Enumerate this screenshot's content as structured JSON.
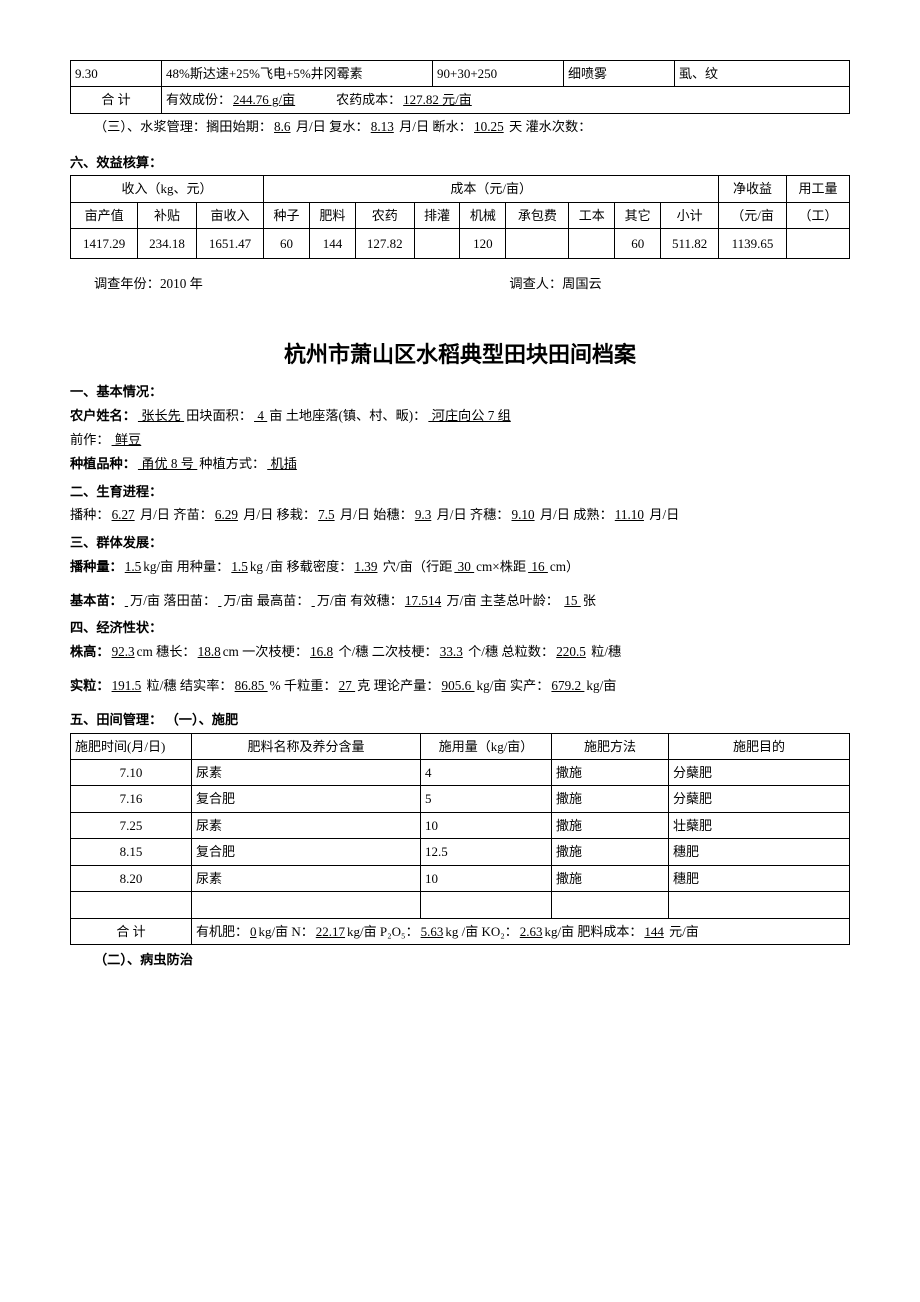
{
  "top_table1": {
    "row1": {
      "c1": "9.30",
      "c2": "48%斯达速+25%飞电+5%井冈霉素",
      "c3": "90+30+250",
      "c4": "细喷雾",
      "c5": "虱、纹"
    },
    "row2": {
      "c1": "合     计",
      "c2_pre": "有效成份：",
      "c2_u": "244.76 g/亩",
      "c3_pre": "农药成本：",
      "c3_u": "127.82 元/亩"
    }
  },
  "water": {
    "label": "（三）、水浆管理：搁田始期：",
    "v1": "8.6",
    "t1": " 月/日     复水：",
    "v2": "8.13",
    "t2": " 月/日     断水：",
    "v3": "10.25",
    "t3": " 天    灌水次数：",
    "v4": "          "
  },
  "section6": "六、效益核算：",
  "benefit_table": {
    "h_inc": "收入（kg、元）",
    "h_cost": "成本（元/亩）",
    "h_net": "净收益",
    "h_labor": "用工量",
    "c_inc1": "亩产值",
    "c_inc2": "补贴",
    "c_inc3": "亩收入",
    "c_c1": "种子",
    "c_c2": "肥料",
    "c_c3": "农药",
    "c_c4": "排灌",
    "c_c5": "机械",
    "c_c6": "承包费",
    "c_c7": "工本",
    "c_c8": "其它",
    "c_c9": "小计",
    "c_net": "（元/亩",
    "c_labor": "（工）",
    "r": {
      "muval": "1417.29",
      "sub": "234.18",
      "muinc": "1651.47",
      "seed": "60",
      "fert": "144",
      "pest": "127.82",
      "irr": "",
      "mach": "120",
      "rent": "",
      "wage": "",
      "other": "60",
      "subtotal": "511.82",
      "net": "1139.65",
      "labor": ""
    }
  },
  "footer": {
    "year_lbl": "调查年份：",
    "year": "2010 年",
    "person_lbl": "调查人：",
    "person": "周国云"
  },
  "main_title": "杭州市萧山区水稻典型田块田间档案",
  "s1": {
    "title": "一、基本情况：",
    "l1a": "农户姓名：",
    "v1": "   张长先   ",
    "l1b": "    田块面积：",
    "v2": "   4   ",
    "l1c": " 亩    土地座落(镇、村、畈)：",
    "v3": "   河庄向公 7 组   ",
    "l2a": "前作：",
    "v4": "  鲜豆  ",
    "l3a": "种植品种：",
    "v5": "  甬优 8 号  ",
    "l3b": "   种植方式：",
    "v6": "   机插    "
  },
  "s2": {
    "title": "二、生育进程：",
    "t1": "播种：",
    "v1": "6.27",
    "u1": " 月/日   齐苗：",
    "v2": "6.29",
    "u2": " 月/日 移栽：",
    "v3": "7.5",
    "u3": " 月/日  始穗：",
    "v4": "9.3",
    "u4": " 月/日  齐穗：",
    "v5": "9.10",
    "u5": " 月/日     成熟：",
    "v6": "11.10",
    "u6": "月/日"
  },
  "s3": {
    "title": "三、群体发展：",
    "l1a": "播种量：",
    "v1": "1.5",
    "l1b": "kg/亩      用种量：",
    "v2": "1.5",
    "l1c": "kg /亩      移载密度：",
    "v3": "1.39",
    "l1d": " 穴/亩（行距",
    "v4": " 30 ",
    "l1e": "cm×株距",
    "v5": " 16 ",
    "l1f": "cm）",
    "l2a": "基本苗：",
    "v6": "          ",
    "l2b": "万/亩     落田苗：",
    "v7": "            ",
    "l2c": "万/亩     最高苗：",
    "v8": "          ",
    "l2d": "万/亩     有效穗：",
    "v9": "17.514",
    "l2e": " 万/亩  主茎总叶龄：",
    "v10": "   15   ",
    "l2f": "张"
  },
  "s4": {
    "title": "四、经济性状：",
    "l1a": "株高：",
    "v1": "92.3",
    "l1b": "cm      穗长：",
    "v2": "18.8",
    "l1c": "cm        一次枝梗：",
    "v3": "16.8",
    "l1d": " 个/穗     二次枝梗：",
    "v4": "33.3",
    "l1e": " 个/穗     总粒数：",
    "v5": "220.5",
    "l1f": " 粒/穗",
    "l2a": "实粒：",
    "v6": "191.5",
    "l2b": " 粒/穗     结实率：",
    "v7": "86.85 ",
    "l2c": "%     千粒重：",
    "v8": "27 ",
    "l2d": " 克     理论产量：",
    "v9": "905.6 ",
    "l2e": " kg/亩     实产：",
    "v10": "679.2 ",
    "l2f": " kg/亩"
  },
  "s5": {
    "title": "五、田间管理：   （一）、施肥",
    "h1": "施肥时间(月/日)",
    "h2": "肥料名称及养分含量",
    "h3": "施用量（kg/亩）",
    "h4": "施肥方法",
    "h5": "施肥目的",
    "rows": [
      {
        "c1": "7.10",
        "c2": "尿素",
        "c3": "4",
        "c4": "撒施",
        "c5": "分蘖肥"
      },
      {
        "c1": "7.16",
        "c2": "复合肥",
        "c3": "5",
        "c4": "撒施",
        "c5": "分蘖肥"
      },
      {
        "c1": "7.25",
        "c2": "尿素",
        "c3": "10",
        "c4": "撒施",
        "c5": "壮蘖肥"
      },
      {
        "c1": "8.15",
        "c2": "复合肥",
        "c3": "12.5",
        "c4": "撒施",
        "c5": "穗肥"
      },
      {
        "c1": "8.20",
        "c2": "尿素",
        "c3": "10",
        "c4": "撒施",
        "c5": "穗肥"
      }
    ],
    "sum_label": "合     计",
    "sum_a": "有机肥：",
    "sv1": "0",
    "sum_b": "kg/亩 N：",
    "sv2": "22.17",
    "sum_c": "kg/亩  P₂O₅：",
    "sv3": "5.63",
    "sum_d": "kg /亩   KO₂：",
    "sv4": "2.63",
    "sum_e": "kg/亩     肥料成本：",
    "sv5": "144",
    "sum_f": " 元/亩"
  },
  "s5b": "（二）、病虫防治"
}
